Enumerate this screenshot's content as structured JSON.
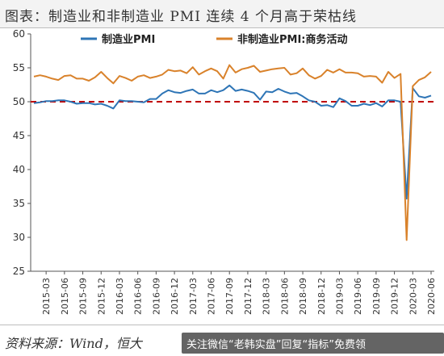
{
  "title": "图表：制造业和非制造业 PMI 连续 4 个月高于荣枯线",
  "source": "资料来源：Wind，恒大",
  "overlay": "关注微信“老韩实盘”回复“指标”免费领",
  "colors": {
    "manufacturing": "#2e75b6",
    "non_manufacturing": "#d9822b",
    "threshold": "#c00000"
  },
  "chart_data": {
    "type": "line",
    "title": "",
    "xlabel": "",
    "ylabel": "",
    "ylim": [
      25,
      60
    ],
    "yticks": [
      25,
      30,
      35,
      40,
      45,
      50,
      55,
      60
    ],
    "grid": false,
    "legend_position": "top",
    "x_tick_labels": [
      "2015-03",
      "2015-06",
      "2015-09",
      "2015-12",
      "2016-03",
      "2016-06",
      "2016-09",
      "2016-12",
      "2017-03",
      "2017-06",
      "2017-09",
      "2017-12",
      "2018-03",
      "2018-06",
      "2018-09",
      "2018-12",
      "2019-03",
      "2019-06",
      "2019-09",
      "2019-12",
      "2020-03",
      "2020-06"
    ],
    "x": [
      "2015-01",
      "2015-02",
      "2015-03",
      "2015-04",
      "2015-05",
      "2015-06",
      "2015-07",
      "2015-08",
      "2015-09",
      "2015-10",
      "2015-11",
      "2015-12",
      "2016-01",
      "2016-02",
      "2016-03",
      "2016-04",
      "2016-05",
      "2016-06",
      "2016-07",
      "2016-08",
      "2016-09",
      "2016-10",
      "2016-11",
      "2016-12",
      "2017-01",
      "2017-02",
      "2017-03",
      "2017-04",
      "2017-05",
      "2017-06",
      "2017-07",
      "2017-08",
      "2017-09",
      "2017-10",
      "2017-11",
      "2017-12",
      "2018-01",
      "2018-02",
      "2018-03",
      "2018-04",
      "2018-05",
      "2018-06",
      "2018-07",
      "2018-08",
      "2018-09",
      "2018-10",
      "2018-11",
      "2018-12",
      "2019-01",
      "2019-02",
      "2019-03",
      "2019-04",
      "2019-05",
      "2019-06",
      "2019-07",
      "2019-08",
      "2019-09",
      "2019-10",
      "2019-11",
      "2019-12",
      "2020-01",
      "2020-02",
      "2020-03",
      "2020-04",
      "2020-05",
      "2020-06"
    ],
    "series": [
      {
        "name": "制造业PMI",
        "values": [
          49.8,
          49.9,
          50.1,
          50.1,
          50.2,
          50.2,
          50.0,
          49.7,
          49.8,
          49.8,
          49.6,
          49.7,
          49.4,
          49.0,
          50.2,
          50.1,
          50.1,
          50.0,
          49.9,
          50.4,
          50.4,
          51.2,
          51.7,
          51.4,
          51.3,
          51.6,
          51.8,
          51.2,
          51.2,
          51.7,
          51.4,
          51.7,
          52.4,
          51.6,
          51.8,
          51.6,
          51.3,
          50.3,
          51.5,
          51.4,
          51.9,
          51.5,
          51.2,
          51.3,
          50.8,
          50.2,
          50.0,
          49.4,
          49.5,
          49.2,
          50.5,
          50.1,
          49.4,
          49.4,
          49.7,
          49.5,
          49.8,
          49.3,
          50.2,
          50.2,
          50.0,
          35.7,
          52.0,
          50.8,
          50.6,
          50.9
        ]
      },
      {
        "name": "非制造业PMI:商务活动",
        "values": [
          53.7,
          53.9,
          53.7,
          53.4,
          53.2,
          53.8,
          53.9,
          53.4,
          53.4,
          53.1,
          53.6,
          54.4,
          53.5,
          52.7,
          53.8,
          53.5,
          53.1,
          53.7,
          53.9,
          53.5,
          53.7,
          54.0,
          54.7,
          54.5,
          54.6,
          54.2,
          55.1,
          54.0,
          54.5,
          54.9,
          54.5,
          53.4,
          55.4,
          54.3,
          54.8,
          55.0,
          55.3,
          54.4,
          54.6,
          54.8,
          54.9,
          55.0,
          54.0,
          54.2,
          54.9,
          53.9,
          53.4,
          53.8,
          54.7,
          54.3,
          54.8,
          54.3,
          54.3,
          54.2,
          53.7,
          53.8,
          53.7,
          52.8,
          54.4,
          53.5,
          54.1,
          29.6,
          52.3,
          53.2,
          53.6,
          54.4
        ]
      }
    ],
    "reference_line": {
      "value": 50,
      "style": "dashed"
    }
  }
}
